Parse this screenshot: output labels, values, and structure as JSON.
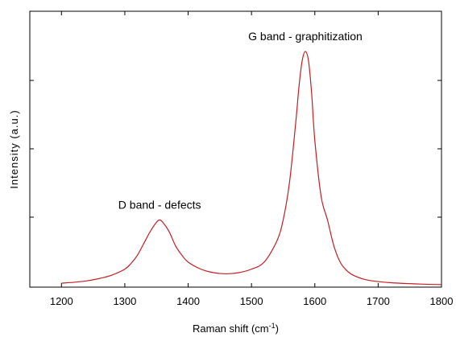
{
  "chart_data": {
    "type": "line",
    "title": "",
    "xlabel": "Raman shift (cm",
    "xlabel_sup": "-1",
    "xlabel_close": ")",
    "ylabel": "Intensity (a.u.)",
    "xlim": [
      1150,
      1800
    ],
    "ylim": [
      0,
      1
    ],
    "x_ticks": [
      1200,
      1300,
      1400,
      1500,
      1600,
      1700,
      1800
    ],
    "y_tick_labels_shown": false,
    "grid": false,
    "line_color": "#c41e24",
    "series": [
      {
        "x": [
          1200,
          1220,
          1240,
          1260,
          1280,
          1300,
          1310,
          1320,
          1330,
          1340,
          1350,
          1355,
          1360,
          1370,
          1380,
          1390,
          1400,
          1420,
          1440,
          1460,
          1480,
          1500,
          1520,
          1540,
          1550,
          1560,
          1570,
          1575,
          1580,
          1585,
          1590,
          1595,
          1600,
          1610,
          1620,
          1630,
          1640,
          1650,
          1660,
          1680,
          1700,
          1720,
          1740,
          1760,
          1780,
          1800
        ],
        "y": [
          0.01,
          0.014,
          0.02,
          0.03,
          0.045,
          0.07,
          0.095,
          0.13,
          0.18,
          0.23,
          0.27,
          0.28,
          0.27,
          0.23,
          0.17,
          0.13,
          0.1,
          0.07,
          0.055,
          0.05,
          0.055,
          0.07,
          0.1,
          0.19,
          0.28,
          0.44,
          0.7,
          0.85,
          0.96,
          1.0,
          0.96,
          0.82,
          0.62,
          0.38,
          0.28,
          0.17,
          0.1,
          0.065,
          0.045,
          0.025,
          0.017,
          0.012,
          0.009,
          0.007,
          0.005,
          0.004
        ]
      }
    ],
    "annotations": [
      {
        "text": "D band - defects",
        "x": 1355,
        "y": 0.28
      },
      {
        "text": "G band - graphitization",
        "x": 1585,
        "y": 1.0
      }
    ]
  }
}
